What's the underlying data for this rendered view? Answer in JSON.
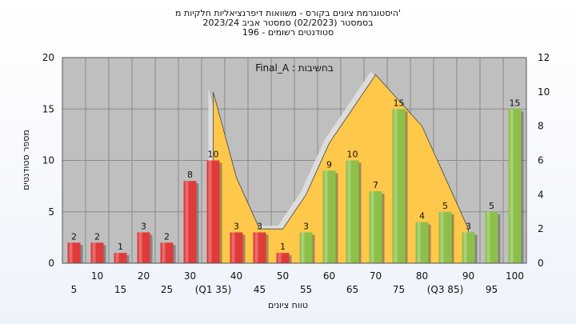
{
  "chart_data": {
    "type": "bar",
    "title_lines": [
      "היסטוגרמת ציונים בקורס - משוואות דיפרנציאליות חלקיות מ'",
      "בסמסטר  (02/2023)  סמסטר אביב 2023/24",
      "סטודנטים רשומים - 196"
    ],
    "legend_text": "Final_A : בחשיבות",
    "xlabel": "טווח ציונים",
    "ylabel": "מספר סטודנטים",
    "ylim": [
      0,
      20
    ],
    "y2lim": [
      0,
      12
    ],
    "y_ticks": [
      "0",
      "5",
      "10",
      "15",
      "20"
    ],
    "y2_ticks": [
      "0",
      "2",
      "4",
      "6",
      "8",
      "10",
      "12"
    ],
    "categories": [
      "5",
      "10",
      "15",
      "20",
      "25",
      "30",
      "(Q1 35)",
      "40",
      "45",
      "50",
      "55",
      "60",
      "65",
      "70",
      "75",
      "80",
      "(Q3 85)",
      "90",
      "95",
      "100"
    ],
    "values": [
      2,
      2,
      1,
      3,
      2,
      8,
      10,
      3,
      3,
      1,
      3,
      9,
      10,
      7,
      15,
      4,
      5,
      3,
      5,
      15
    ],
    "bar_colors": [
      "#e03a3a",
      "#e03a3a",
      "#e03a3a",
      "#e03a3a",
      "#e03a3a",
      "#e03a3a",
      "#e03a3a",
      "#e03a3a",
      "#e03a3a",
      "#e03a3a",
      "#8cc04a",
      "#8cc04a",
      "#8cc04a",
      "#8cc04a",
      "#8cc04a",
      "#8cc04a",
      "#8cc04a",
      "#8cc04a",
      "#8cc04a",
      "#8cc04a"
    ],
    "area_y2": [
      null,
      null,
      null,
      null,
      null,
      null,
      10,
      5,
      2,
      2,
      4,
      7,
      9,
      11,
      9.5,
      8,
      5,
      2,
      null,
      null
    ],
    "colors": {
      "plot_bg": "#bfbfbf",
      "grid": "#8a8a8a",
      "area_fill": "#ffc84a",
      "area_shadow": "#e0e0e0",
      "red": "#e03a3a",
      "green": "#8cc04a"
    },
    "grid": true
  }
}
